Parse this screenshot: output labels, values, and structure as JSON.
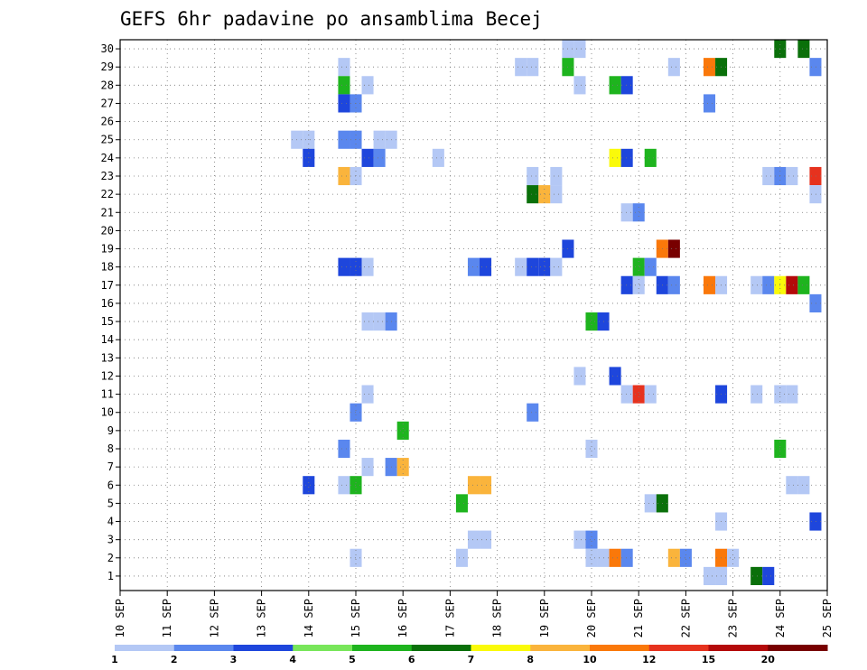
{
  "chart_data": {
    "type": "heatmap",
    "title": "GEFS 6hr padavine po ansamblima Becej",
    "xlabel": "",
    "ylabel": "",
    "x_ticks": [
      "10 SEP",
      "11 SEP",
      "12 SEP",
      "13 SEP",
      "14 SEP",
      "15 SEP",
      "16 SEP",
      "17 SEP",
      "18 SEP",
      "19 SEP",
      "20 SEP",
      "21 SEP",
      "22 SEP",
      "23 SEP",
      "24 SEP",
      "25 SEP"
    ],
    "y_ticks": [
      "1",
      "2",
      "3",
      "4",
      "5",
      "6",
      "7",
      "8",
      "9",
      "10",
      "11",
      "12",
      "13",
      "14",
      "15",
      "16",
      "17",
      "18",
      "19",
      "20",
      "21",
      "22",
      "23",
      "24",
      "25",
      "26",
      "27",
      "28",
      "29",
      "30"
    ],
    "x_unit": "day",
    "xlim": [
      0,
      15
    ],
    "ylim": [
      0,
      30
    ],
    "grid": true,
    "colorbar": {
      "labels": [
        "1",
        "2",
        "3",
        "4",
        "5",
        "6",
        "7",
        "8",
        "10",
        "12",
        "15",
        "20"
      ],
      "colors": [
        "#b4c8f5",
        "#5a87ee",
        "#1e46dc",
        "#78e65a",
        "#1eb41e",
        "#0a700a",
        "#fafa0a",
        "#fab43c",
        "#fa780a",
        "#e6321e",
        "#b40a0a",
        "#780000"
      ]
    },
    "cells": [
      {
        "x": 4.75,
        "y": 29,
        "v": 1
      },
      {
        "x": 5.25,
        "y": 28,
        "v": 1
      },
      {
        "x": 8.5,
        "y": 29,
        "v": 1
      },
      {
        "x": 8.75,
        "y": 29,
        "v": 1
      },
      {
        "x": 9.5,
        "y": 30,
        "v": 1
      },
      {
        "x": 9.75,
        "y": 30,
        "v": 1
      },
      {
        "x": 9.5,
        "y": 29,
        "v": 5
      },
      {
        "x": 9.75,
        "y": 28,
        "v": 1
      },
      {
        "x": 10.5,
        "y": 28,
        "v": 5
      },
      {
        "x": 10.75,
        "y": 28,
        "v": 3
      },
      {
        "x": 11.75,
        "y": 29,
        "v": 1
      },
      {
        "x": 12.5,
        "y": 29,
        "v": 10
      },
      {
        "x": 12.75,
        "y": 29,
        "v": 6
      },
      {
        "x": 14.0,
        "y": 30,
        "v": 6
      },
      {
        "x": 14.5,
        "y": 30,
        "v": 6
      },
      {
        "x": 14.75,
        "y": 29,
        "v": 2
      },
      {
        "x": 4.75,
        "y": 28,
        "v": 5
      },
      {
        "x": 4.75,
        "y": 27,
        "v": 3
      },
      {
        "x": 5.0,
        "y": 27,
        "v": 2
      },
      {
        "x": 12.5,
        "y": 27,
        "v": 2
      },
      {
        "x": 3.75,
        "y": 25,
        "v": 1
      },
      {
        "x": 4.0,
        "y": 25,
        "v": 1
      },
      {
        "x": 4.75,
        "y": 25,
        "v": 2
      },
      {
        "x": 5.0,
        "y": 25,
        "v": 2
      },
      {
        "x": 5.5,
        "y": 25,
        "v": 1
      },
      {
        "x": 5.75,
        "y": 25,
        "v": 1
      },
      {
        "x": 4.0,
        "y": 24,
        "v": 3
      },
      {
        "x": 5.25,
        "y": 24,
        "v": 3
      },
      {
        "x": 5.5,
        "y": 24,
        "v": 2
      },
      {
        "x": 6.75,
        "y": 24,
        "v": 1
      },
      {
        "x": 10.5,
        "y": 24,
        "v": 7
      },
      {
        "x": 10.75,
        "y": 24,
        "v": 3
      },
      {
        "x": 11.25,
        "y": 24,
        "v": 5
      },
      {
        "x": 4.75,
        "y": 23,
        "v": 8
      },
      {
        "x": 5.0,
        "y": 23,
        "v": 1
      },
      {
        "x": 8.75,
        "y": 23,
        "v": 1
      },
      {
        "x": 9.25,
        "y": 23,
        "v": 1
      },
      {
        "x": 13.75,
        "y": 23,
        "v": 1
      },
      {
        "x": 14.0,
        "y": 23,
        "v": 2
      },
      {
        "x": 14.25,
        "y": 23,
        "v": 1
      },
      {
        "x": 14.75,
        "y": 23,
        "v": 12
      },
      {
        "x": 8.75,
        "y": 22,
        "v": 6
      },
      {
        "x": 9.0,
        "y": 22,
        "v": 8
      },
      {
        "x": 9.25,
        "y": 22,
        "v": 1
      },
      {
        "x": 14.75,
        "y": 22,
        "v": 1
      },
      {
        "x": 10.75,
        "y": 21,
        "v": 1
      },
      {
        "x": 11.0,
        "y": 21,
        "v": 2
      },
      {
        "x": 9.5,
        "y": 19,
        "v": 3
      },
      {
        "x": 11.5,
        "y": 19,
        "v": 10
      },
      {
        "x": 11.75,
        "y": 19,
        "v": 20
      },
      {
        "x": 4.75,
        "y": 18,
        "v": 3
      },
      {
        "x": 5.0,
        "y": 18,
        "v": 3
      },
      {
        "x": 5.25,
        "y": 18,
        "v": 1
      },
      {
        "x": 7.5,
        "y": 18,
        "v": 2
      },
      {
        "x": 7.75,
        "y": 18,
        "v": 3
      },
      {
        "x": 8.5,
        "y": 18,
        "v": 1
      },
      {
        "x": 8.75,
        "y": 18,
        "v": 3
      },
      {
        "x": 9.0,
        "y": 18,
        "v": 3
      },
      {
        "x": 9.25,
        "y": 18,
        "v": 1
      },
      {
        "x": 11.0,
        "y": 18,
        "v": 5
      },
      {
        "x": 11.25,
        "y": 18,
        "v": 2
      },
      {
        "x": 10.75,
        "y": 17,
        "v": 3
      },
      {
        "x": 11.0,
        "y": 17,
        "v": 1
      },
      {
        "x": 11.5,
        "y": 17,
        "v": 3
      },
      {
        "x": 11.75,
        "y": 17,
        "v": 2
      },
      {
        "x": 12.5,
        "y": 17,
        "v": 10
      },
      {
        "x": 12.75,
        "y": 17,
        "v": 1
      },
      {
        "x": 13.5,
        "y": 17,
        "v": 1
      },
      {
        "x": 13.75,
        "y": 17,
        "v": 2
      },
      {
        "x": 14.0,
        "y": 17,
        "v": 7
      },
      {
        "x": 14.25,
        "y": 17,
        "v": 15
      },
      {
        "x": 14.5,
        "y": 17,
        "v": 5
      },
      {
        "x": 14.75,
        "y": 16,
        "v": 2
      },
      {
        "x": 5.25,
        "y": 15,
        "v": 1
      },
      {
        "x": 5.5,
        "y": 15,
        "v": 1
      },
      {
        "x": 5.75,
        "y": 15,
        "v": 2
      },
      {
        "x": 10.0,
        "y": 15,
        "v": 5
      },
      {
        "x": 10.25,
        "y": 15,
        "v": 3
      },
      {
        "x": 9.75,
        "y": 12,
        "v": 1
      },
      {
        "x": 10.5,
        "y": 12,
        "v": 3
      },
      {
        "x": 5.25,
        "y": 11,
        "v": 1
      },
      {
        "x": 10.75,
        "y": 11,
        "v": 1
      },
      {
        "x": 11.0,
        "y": 11,
        "v": 12
      },
      {
        "x": 11.25,
        "y": 11,
        "v": 1
      },
      {
        "x": 12.75,
        "y": 11,
        "v": 3
      },
      {
        "x": 13.5,
        "y": 11,
        "v": 1
      },
      {
        "x": 14.0,
        "y": 11,
        "v": 1
      },
      {
        "x": 14.25,
        "y": 11,
        "v": 1
      },
      {
        "x": 5.0,
        "y": 10,
        "v": 2
      },
      {
        "x": 8.75,
        "y": 10,
        "v": 2
      },
      {
        "x": 6.0,
        "y": 9,
        "v": 5
      },
      {
        "x": 4.75,
        "y": 8,
        "v": 2
      },
      {
        "x": 10.0,
        "y": 8,
        "v": 1
      },
      {
        "x": 14.0,
        "y": 8,
        "v": 5
      },
      {
        "x": 5.25,
        "y": 7,
        "v": 1
      },
      {
        "x": 5.75,
        "y": 7,
        "v": 2
      },
      {
        "x": 6.0,
        "y": 7,
        "v": 8
      },
      {
        "x": 4.0,
        "y": 6,
        "v": 3
      },
      {
        "x": 4.75,
        "y": 6,
        "v": 1
      },
      {
        "x": 5.0,
        "y": 6,
        "v": 5
      },
      {
        "x": 7.5,
        "y": 6,
        "v": 8
      },
      {
        "x": 7.75,
        "y": 6,
        "v": 8
      },
      {
        "x": 14.25,
        "y": 6,
        "v": 1
      },
      {
        "x": 14.5,
        "y": 6,
        "v": 1
      },
      {
        "x": 7.25,
        "y": 5,
        "v": 5
      },
      {
        "x": 11.25,
        "y": 5,
        "v": 1
      },
      {
        "x": 11.5,
        "y": 5,
        "v": 6
      },
      {
        "x": 12.75,
        "y": 4,
        "v": 1
      },
      {
        "x": 14.75,
        "y": 4,
        "v": 3
      },
      {
        "x": 7.5,
        "y": 3,
        "v": 1
      },
      {
        "x": 7.75,
        "y": 3,
        "v": 1
      },
      {
        "x": 9.75,
        "y": 3,
        "v": 1
      },
      {
        "x": 10.0,
        "y": 3,
        "v": 2
      },
      {
        "x": 5.0,
        "y": 2,
        "v": 1
      },
      {
        "x": 7.25,
        "y": 2,
        "v": 1
      },
      {
        "x": 10.0,
        "y": 2,
        "v": 1
      },
      {
        "x": 10.25,
        "y": 2,
        "v": 1
      },
      {
        "x": 10.5,
        "y": 2,
        "v": 10
      },
      {
        "x": 10.75,
        "y": 2,
        "v": 2
      },
      {
        "x": 11.75,
        "y": 2,
        "v": 8
      },
      {
        "x": 12.0,
        "y": 2,
        "v": 2
      },
      {
        "x": 12.75,
        "y": 2,
        "v": 10
      },
      {
        "x": 13.0,
        "y": 2,
        "v": 1
      },
      {
        "x": 12.5,
        "y": 1,
        "v": 1
      },
      {
        "x": 12.75,
        "y": 1,
        "v": 1
      },
      {
        "x": 13.5,
        "y": 1,
        "v": 6
      },
      {
        "x": 13.75,
        "y": 1,
        "v": 3
      }
    ]
  }
}
